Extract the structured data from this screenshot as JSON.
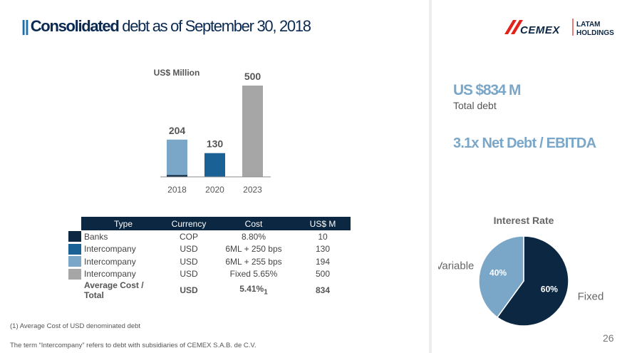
{
  "slide": {
    "title_prefix": "||",
    "title_bold": "Consolidated",
    "title_rest": "debt as of September 30, 2018",
    "page_number": "26"
  },
  "logo": {
    "brand": "CEMEX",
    "line1": "LATAM",
    "line2": "HOLDINGS"
  },
  "stats": {
    "total_value": "US $834 M",
    "total_label": "Total debt",
    "ratio": "3.1x Net Debt / EBITDA"
  },
  "table": {
    "headers": [
      "Type",
      "Currency",
      "Cost",
      "US$ M"
    ],
    "rows": [
      {
        "type": "Banks",
        "currency": "COP",
        "cost": "8.80%",
        "amount": "10",
        "color": "#0b2742"
      },
      {
        "type": "Intercompany",
        "currency": "USD",
        "cost": "6ML + 250 bps",
        "amount": "130",
        "color": "#1a6196"
      },
      {
        "type": "Intercompany",
        "currency": "USD",
        "cost": "6ML + 255 bps",
        "amount": "194",
        "color": "#7aa6c8"
      },
      {
        "type": "Intercompany",
        "currency": "USD",
        "cost": "Fixed 5.65%",
        "amount": "500",
        "color": "#a6a6a6"
      }
    ],
    "total": {
      "type": "Average Cost / Total",
      "currency": "USD",
      "cost": "5.41%",
      "cost_sub": "1",
      "amount": "834"
    }
  },
  "footnotes": {
    "note1": "(1) Average Cost of USD denominated debt",
    "note2": "The term “Intercompany” refers to debt with subsidiaries of CEMEX S.A.B. de C.V."
  },
  "chart_data": [
    {
      "type": "bar",
      "stacked": true,
      "unit_label": "US$ Million",
      "categories": [
        "2018",
        "2020",
        "2023"
      ],
      "series": [
        {
          "values": [
            10,
            0,
            0
          ],
          "color": "#0b2742"
        },
        {
          "values": [
            194,
            0,
            0
          ],
          "color": "#7aa6c8"
        },
        {
          "values": [
            0,
            130,
            0
          ],
          "color": "#1a6196"
        },
        {
          "values": [
            0,
            0,
            500
          ],
          "color": "#a6a6a6"
        }
      ],
      "totals": [
        "204",
        "130",
        "500"
      ],
      "ylim": [
        0,
        500
      ],
      "grid": false
    },
    {
      "type": "pie",
      "title": "Interest Rate",
      "slices": [
        {
          "label": "Fixed",
          "value": 60,
          "value_label": "60%",
          "color": "#0b2742"
        },
        {
          "label": "Variable",
          "value": 40,
          "value_label": "40%",
          "color": "#7aa6c8"
        }
      ]
    }
  ]
}
